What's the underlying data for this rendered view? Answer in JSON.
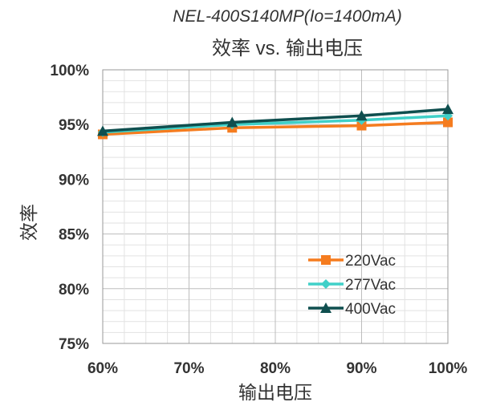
{
  "chart_data": {
    "type": "line",
    "title": "NEL-400S140MP(Io=1400mA)",
    "subtitle": "效率 vs. 输出电压",
    "xlabel": "输出电压",
    "ylabel": "效率",
    "x": [
      60,
      75,
      90,
      100
    ],
    "xlim": [
      60,
      100
    ],
    "ylim": [
      75,
      100
    ],
    "x_ticks": [
      "60%",
      "70%",
      "80%",
      "90%",
      "100%"
    ],
    "y_ticks": [
      "75%",
      "80%",
      "85%",
      "90%",
      "95%",
      "100%"
    ],
    "grid": true,
    "legend_position": "bottom-right",
    "series": [
      {
        "name": "220Vac",
        "color": "#f57c1f",
        "marker": "square",
        "values": [
          94.1,
          94.7,
          94.9,
          95.2
        ]
      },
      {
        "name": "277Vac",
        "color": "#40d0c8",
        "marker": "diamond",
        "values": [
          94.3,
          95.0,
          95.4,
          95.8
        ]
      },
      {
        "name": "400Vac",
        "color": "#0f4f4f",
        "marker": "triangle",
        "values": [
          94.4,
          95.2,
          95.8,
          96.4
        ]
      }
    ]
  }
}
